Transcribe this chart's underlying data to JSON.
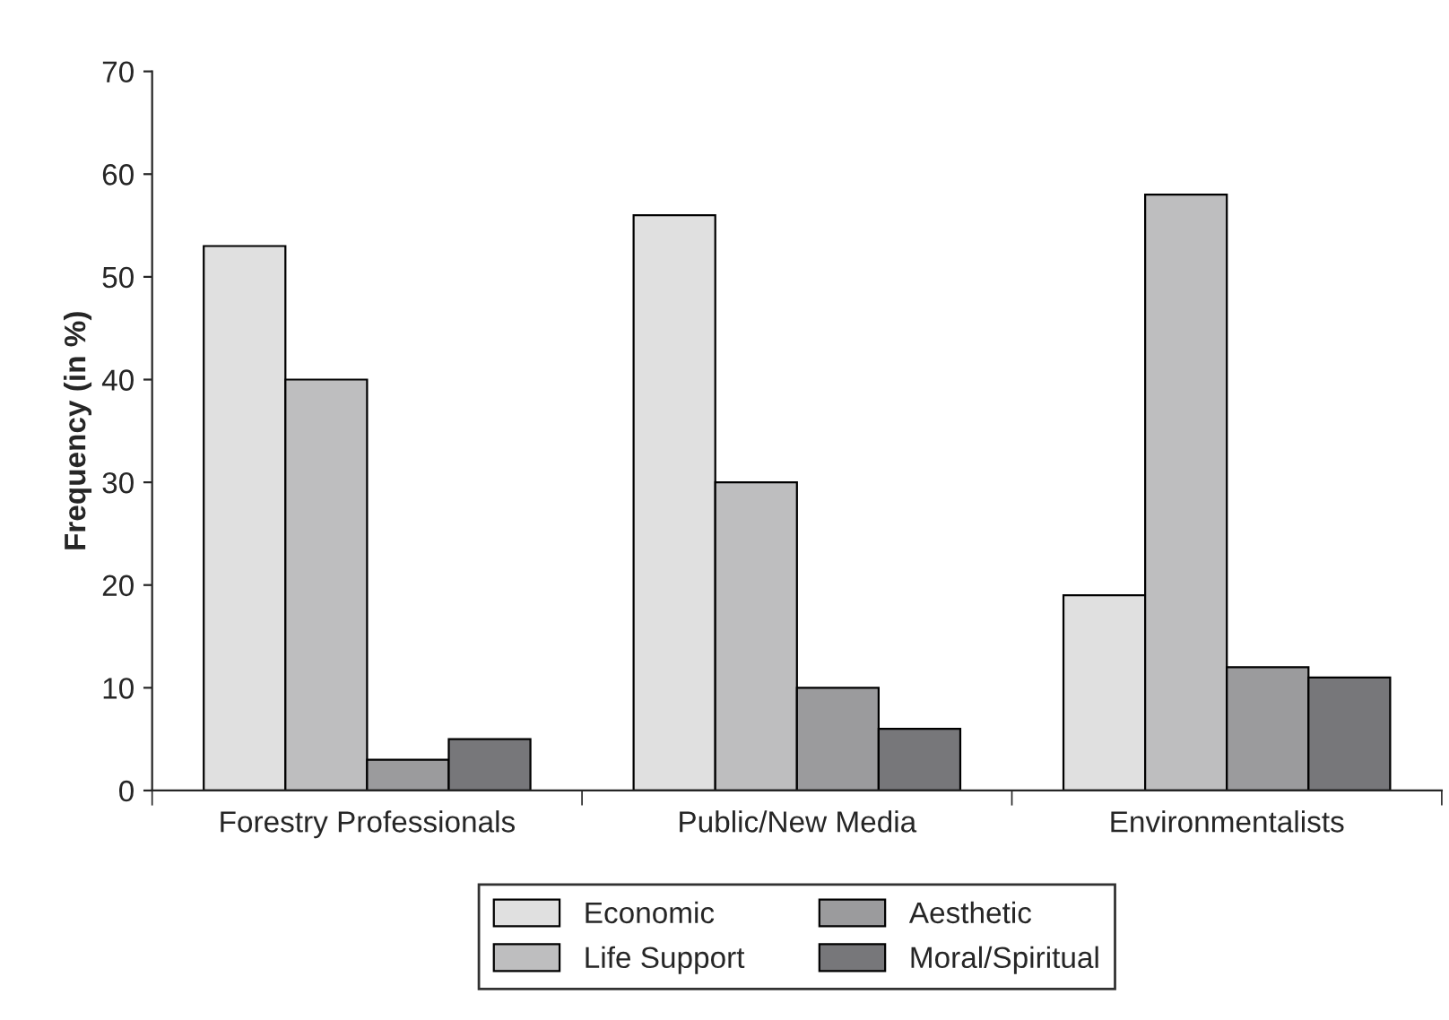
{
  "chart_data": {
    "type": "bar",
    "ylabel": "Frequency (in %)",
    "categories": [
      "Forestry Professionals",
      "Public/New Media",
      "Environmentalists"
    ],
    "series": [
      {
        "name": "Economic",
        "color": "#e0e0e0",
        "values": [
          53,
          56,
          19
        ]
      },
      {
        "name": "Life Support",
        "color": "#bebebf",
        "values": [
          40,
          30,
          58
        ]
      },
      {
        "name": "Aesthetic",
        "color": "#9b9b9d",
        "values": [
          3,
          10,
          12
        ]
      },
      {
        "name": "Moral/Spiritual",
        "color": "#77777a",
        "values": [
          5,
          6,
          11
        ]
      }
    ],
    "ylim": [
      0,
      70
    ],
    "yticks": [
      0,
      10,
      20,
      30,
      40,
      50,
      60,
      70
    ],
    "grid": false,
    "legend": "bottom"
  }
}
